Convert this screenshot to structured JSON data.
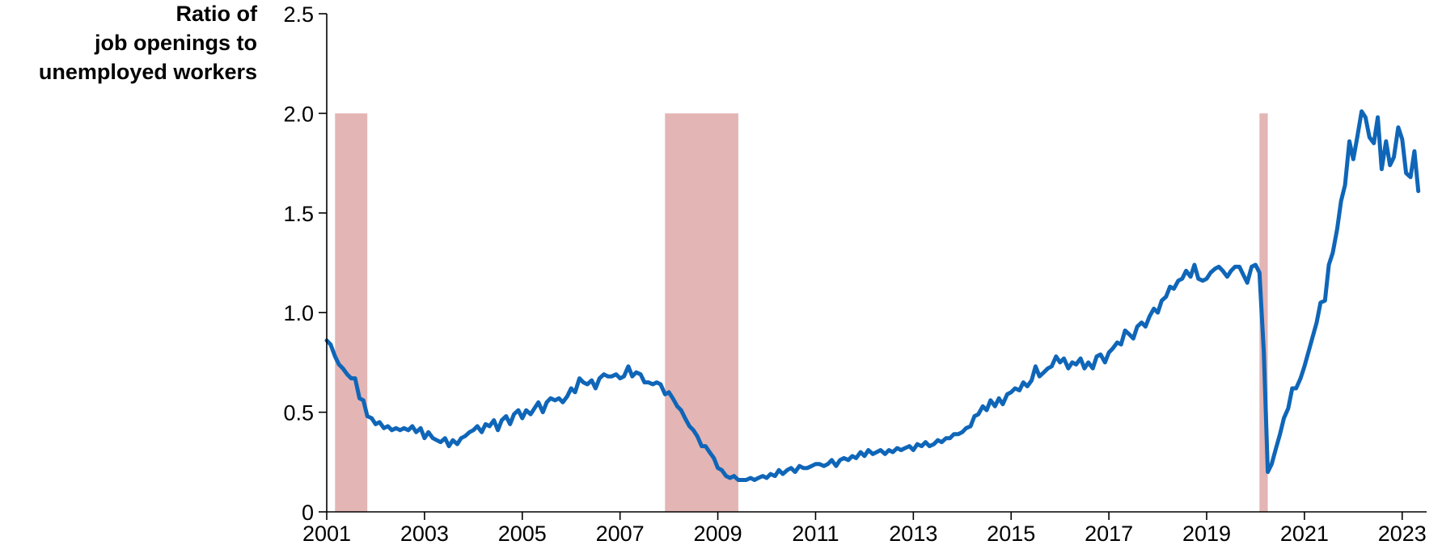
{
  "chart_data": {
    "type": "line",
    "title": "",
    "ylabel_lines": [
      "Ratio of",
      "job openings to",
      "unemployed workers"
    ],
    "xlabel": "",
    "ylim": [
      0,
      2.5
    ],
    "xlim": [
      2001.0,
      2023.5
    ],
    "grid": false,
    "yticks": [
      {
        "value": 0,
        "label": "0"
      },
      {
        "value": 0.5,
        "label": "0.5"
      },
      {
        "value": 1.0,
        "label": "1.0"
      },
      {
        "value": 1.5,
        "label": "1.5"
      },
      {
        "value": 2.0,
        "label": "2.0"
      },
      {
        "value": 2.5,
        "label": "2.5"
      }
    ],
    "xticks": [
      {
        "value": 2001,
        "label": "2001"
      },
      {
        "value": 2003,
        "label": "2003"
      },
      {
        "value": 2005,
        "label": "2005"
      },
      {
        "value": 2007,
        "label": "2007"
      },
      {
        "value": 2009,
        "label": "2009"
      },
      {
        "value": 2011,
        "label": "2011"
      },
      {
        "value": 2013,
        "label": "2013"
      },
      {
        "value": 2015,
        "label": "2015"
      },
      {
        "value": 2017,
        "label": "2017"
      },
      {
        "value": 2019,
        "label": "2019"
      },
      {
        "value": 2021,
        "label": "2021"
      },
      {
        "value": 2023,
        "label": "2023"
      }
    ],
    "recession_bands": [
      {
        "start": 2001.17,
        "end": 2001.83,
        "top": 2.0
      },
      {
        "start": 2007.92,
        "end": 2009.42,
        "top": 2.0
      },
      {
        "start": 2020.08,
        "end": 2020.25,
        "top": 2.0
      }
    ],
    "series": [
      {
        "color": "#0f66b8",
        "points": [
          [
            2001.0,
            0.86
          ],
          [
            2001.08,
            0.84
          ],
          [
            2001.17,
            0.78
          ],
          [
            2001.25,
            0.74
          ],
          [
            2001.33,
            0.72
          ],
          [
            2001.42,
            0.69
          ],
          [
            2001.5,
            0.67
          ],
          [
            2001.58,
            0.67
          ],
          [
            2001.67,
            0.57
          ],
          [
            2001.75,
            0.56
          ],
          [
            2001.83,
            0.48
          ],
          [
            2001.92,
            0.47
          ],
          [
            2002.0,
            0.44
          ],
          [
            2002.08,
            0.45
          ],
          [
            2002.17,
            0.42
          ],
          [
            2002.25,
            0.43
          ],
          [
            2002.33,
            0.41
          ],
          [
            2002.42,
            0.42
          ],
          [
            2002.5,
            0.41
          ],
          [
            2002.58,
            0.42
          ],
          [
            2002.67,
            0.41
          ],
          [
            2002.75,
            0.43
          ],
          [
            2002.83,
            0.4
          ],
          [
            2002.92,
            0.42
          ],
          [
            2003.0,
            0.37
          ],
          [
            2003.08,
            0.4
          ],
          [
            2003.17,
            0.37
          ],
          [
            2003.25,
            0.36
          ],
          [
            2003.33,
            0.35
          ],
          [
            2003.42,
            0.37
          ],
          [
            2003.5,
            0.33
          ],
          [
            2003.58,
            0.36
          ],
          [
            2003.67,
            0.34
          ],
          [
            2003.75,
            0.37
          ],
          [
            2003.83,
            0.38
          ],
          [
            2003.92,
            0.4
          ],
          [
            2004.0,
            0.41
          ],
          [
            2004.08,
            0.43
          ],
          [
            2004.17,
            0.4
          ],
          [
            2004.25,
            0.44
          ],
          [
            2004.33,
            0.43
          ],
          [
            2004.42,
            0.46
          ],
          [
            2004.5,
            0.41
          ],
          [
            2004.58,
            0.46
          ],
          [
            2004.67,
            0.48
          ],
          [
            2004.75,
            0.44
          ],
          [
            2004.83,
            0.49
          ],
          [
            2004.92,
            0.51
          ],
          [
            2005.0,
            0.47
          ],
          [
            2005.08,
            0.51
          ],
          [
            2005.17,
            0.49
          ],
          [
            2005.25,
            0.52
          ],
          [
            2005.33,
            0.55
          ],
          [
            2005.42,
            0.5
          ],
          [
            2005.5,
            0.55
          ],
          [
            2005.58,
            0.57
          ],
          [
            2005.67,
            0.56
          ],
          [
            2005.75,
            0.57
          ],
          [
            2005.83,
            0.55
          ],
          [
            2005.92,
            0.58
          ],
          [
            2006.0,
            0.62
          ],
          [
            2006.08,
            0.6
          ],
          [
            2006.17,
            0.67
          ],
          [
            2006.25,
            0.65
          ],
          [
            2006.33,
            0.64
          ],
          [
            2006.42,
            0.66
          ],
          [
            2006.5,
            0.62
          ],
          [
            2006.58,
            0.67
          ],
          [
            2006.67,
            0.69
          ],
          [
            2006.75,
            0.68
          ],
          [
            2006.83,
            0.68
          ],
          [
            2006.92,
            0.69
          ],
          [
            2007.0,
            0.67
          ],
          [
            2007.08,
            0.68
          ],
          [
            2007.17,
            0.73
          ],
          [
            2007.25,
            0.68
          ],
          [
            2007.33,
            0.7
          ],
          [
            2007.42,
            0.69
          ],
          [
            2007.5,
            0.65
          ],
          [
            2007.58,
            0.65
          ],
          [
            2007.67,
            0.64
          ],
          [
            2007.75,
            0.65
          ],
          [
            2007.83,
            0.64
          ],
          [
            2007.92,
            0.59
          ],
          [
            2008.0,
            0.6
          ],
          [
            2008.08,
            0.57
          ],
          [
            2008.17,
            0.53
          ],
          [
            2008.25,
            0.51
          ],
          [
            2008.33,
            0.47
          ],
          [
            2008.42,
            0.43
          ],
          [
            2008.5,
            0.41
          ],
          [
            2008.58,
            0.38
          ],
          [
            2008.67,
            0.33
          ],
          [
            2008.75,
            0.33
          ],
          [
            2008.83,
            0.3
          ],
          [
            2008.92,
            0.27
          ],
          [
            2009.0,
            0.22
          ],
          [
            2009.08,
            0.21
          ],
          [
            2009.17,
            0.18
          ],
          [
            2009.25,
            0.17
          ],
          [
            2009.33,
            0.18
          ],
          [
            2009.42,
            0.16
          ],
          [
            2009.5,
            0.16
          ],
          [
            2009.58,
            0.16
          ],
          [
            2009.67,
            0.17
          ],
          [
            2009.75,
            0.16
          ],
          [
            2009.83,
            0.17
          ],
          [
            2009.92,
            0.18
          ],
          [
            2010.0,
            0.17
          ],
          [
            2010.08,
            0.19
          ],
          [
            2010.17,
            0.18
          ],
          [
            2010.25,
            0.21
          ],
          [
            2010.33,
            0.19
          ],
          [
            2010.42,
            0.21
          ],
          [
            2010.5,
            0.22
          ],
          [
            2010.58,
            0.2
          ],
          [
            2010.67,
            0.23
          ],
          [
            2010.75,
            0.22
          ],
          [
            2010.83,
            0.22
          ],
          [
            2010.92,
            0.23
          ],
          [
            2011.0,
            0.24
          ],
          [
            2011.08,
            0.24
          ],
          [
            2011.17,
            0.23
          ],
          [
            2011.25,
            0.24
          ],
          [
            2011.33,
            0.26
          ],
          [
            2011.42,
            0.23
          ],
          [
            2011.5,
            0.26
          ],
          [
            2011.58,
            0.27
          ],
          [
            2011.67,
            0.26
          ],
          [
            2011.75,
            0.28
          ],
          [
            2011.83,
            0.27
          ],
          [
            2011.92,
            0.3
          ],
          [
            2012.0,
            0.28
          ],
          [
            2012.08,
            0.31
          ],
          [
            2012.17,
            0.29
          ],
          [
            2012.25,
            0.3
          ],
          [
            2012.33,
            0.31
          ],
          [
            2012.42,
            0.29
          ],
          [
            2012.5,
            0.31
          ],
          [
            2012.58,
            0.3
          ],
          [
            2012.67,
            0.32
          ],
          [
            2012.75,
            0.31
          ],
          [
            2012.83,
            0.32
          ],
          [
            2012.92,
            0.33
          ],
          [
            2013.0,
            0.31
          ],
          [
            2013.08,
            0.34
          ],
          [
            2013.17,
            0.33
          ],
          [
            2013.25,
            0.35
          ],
          [
            2013.33,
            0.33
          ],
          [
            2013.42,
            0.34
          ],
          [
            2013.5,
            0.36
          ],
          [
            2013.58,
            0.35
          ],
          [
            2013.67,
            0.37
          ],
          [
            2013.75,
            0.37
          ],
          [
            2013.83,
            0.39
          ],
          [
            2013.92,
            0.39
          ],
          [
            2014.0,
            0.4
          ],
          [
            2014.08,
            0.42
          ],
          [
            2014.17,
            0.43
          ],
          [
            2014.25,
            0.48
          ],
          [
            2014.33,
            0.49
          ],
          [
            2014.42,
            0.53
          ],
          [
            2014.5,
            0.51
          ],
          [
            2014.58,
            0.56
          ],
          [
            2014.67,
            0.53
          ],
          [
            2014.75,
            0.57
          ],
          [
            2014.83,
            0.54
          ],
          [
            2014.92,
            0.59
          ],
          [
            2015.0,
            0.6
          ],
          [
            2015.08,
            0.62
          ],
          [
            2015.17,
            0.61
          ],
          [
            2015.25,
            0.65
          ],
          [
            2015.33,
            0.63
          ],
          [
            2015.42,
            0.66
          ],
          [
            2015.5,
            0.73
          ],
          [
            2015.58,
            0.68
          ],
          [
            2015.67,
            0.7
          ],
          [
            2015.75,
            0.72
          ],
          [
            2015.83,
            0.73
          ],
          [
            2015.92,
            0.78
          ],
          [
            2016.0,
            0.75
          ],
          [
            2016.08,
            0.77
          ],
          [
            2016.17,
            0.72
          ],
          [
            2016.25,
            0.75
          ],
          [
            2016.33,
            0.74
          ],
          [
            2016.42,
            0.77
          ],
          [
            2016.5,
            0.72
          ],
          [
            2016.58,
            0.75
          ],
          [
            2016.67,
            0.72
          ],
          [
            2016.75,
            0.78
          ],
          [
            2016.83,
            0.79
          ],
          [
            2016.92,
            0.75
          ],
          [
            2017.0,
            0.8
          ],
          [
            2017.08,
            0.82
          ],
          [
            2017.17,
            0.85
          ],
          [
            2017.25,
            0.84
          ],
          [
            2017.33,
            0.91
          ],
          [
            2017.42,
            0.89
          ],
          [
            2017.5,
            0.87
          ],
          [
            2017.58,
            0.93
          ],
          [
            2017.67,
            0.95
          ],
          [
            2017.75,
            0.93
          ],
          [
            2017.83,
            0.98
          ],
          [
            2017.92,
            1.02
          ],
          [
            2018.0,
            1.0
          ],
          [
            2018.08,
            1.06
          ],
          [
            2018.17,
            1.08
          ],
          [
            2018.25,
            1.13
          ],
          [
            2018.33,
            1.12
          ],
          [
            2018.42,
            1.16
          ],
          [
            2018.5,
            1.17
          ],
          [
            2018.58,
            1.21
          ],
          [
            2018.67,
            1.18
          ],
          [
            2018.75,
            1.24
          ],
          [
            2018.83,
            1.17
          ],
          [
            2018.92,
            1.16
          ],
          [
            2019.0,
            1.17
          ],
          [
            2019.08,
            1.2
          ],
          [
            2019.17,
            1.22
          ],
          [
            2019.25,
            1.23
          ],
          [
            2019.33,
            1.21
          ],
          [
            2019.42,
            1.18
          ],
          [
            2019.5,
            1.21
          ],
          [
            2019.58,
            1.23
          ],
          [
            2019.67,
            1.23
          ],
          [
            2019.75,
            1.19
          ],
          [
            2019.83,
            1.15
          ],
          [
            2019.92,
            1.23
          ],
          [
            2020.0,
            1.24
          ],
          [
            2020.08,
            1.2
          ],
          [
            2020.17,
            0.8
          ],
          [
            2020.25,
            0.2
          ],
          [
            2020.33,
            0.24
          ],
          [
            2020.42,
            0.32
          ],
          [
            2020.5,
            0.39
          ],
          [
            2020.58,
            0.47
          ],
          [
            2020.67,
            0.52
          ],
          [
            2020.75,
            0.62
          ],
          [
            2020.83,
            0.62
          ],
          [
            2020.92,
            0.67
          ],
          [
            2021.0,
            0.73
          ],
          [
            2021.08,
            0.8
          ],
          [
            2021.17,
            0.88
          ],
          [
            2021.25,
            0.95
          ],
          [
            2021.33,
            1.05
          ],
          [
            2021.42,
            1.06
          ],
          [
            2021.5,
            1.24
          ],
          [
            2021.58,
            1.3
          ],
          [
            2021.67,
            1.42
          ],
          [
            2021.75,
            1.56
          ],
          [
            2021.83,
            1.64
          ],
          [
            2021.92,
            1.86
          ],
          [
            2022.0,
            1.77
          ],
          [
            2022.08,
            1.88
          ],
          [
            2022.17,
            2.01
          ],
          [
            2022.25,
            1.98
          ],
          [
            2022.33,
            1.88
          ],
          [
            2022.42,
            1.85
          ],
          [
            2022.5,
            1.98
          ],
          [
            2022.58,
            1.72
          ],
          [
            2022.67,
            1.86
          ],
          [
            2022.75,
            1.74
          ],
          [
            2022.83,
            1.78
          ],
          [
            2022.92,
            1.93
          ],
          [
            2023.0,
            1.87
          ],
          [
            2023.08,
            1.7
          ],
          [
            2023.17,
            1.68
          ],
          [
            2023.25,
            1.81
          ],
          [
            2023.33,
            1.61
          ]
        ]
      }
    ]
  }
}
